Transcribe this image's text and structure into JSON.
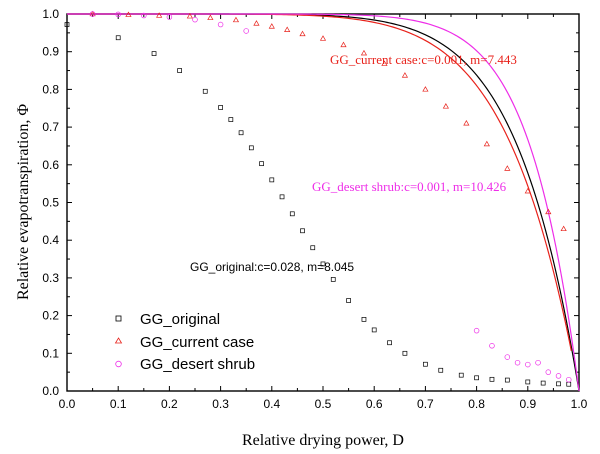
{
  "chart_data": {
    "type": "scatter",
    "xlabel": "Relative drying power, D",
    "ylabel": "Relative evapotranspiration, Φ",
    "xlim": [
      0.0,
      1.0
    ],
    "ylim": [
      0.0,
      1.0
    ],
    "xticks": [
      0.0,
      0.1,
      0.2,
      0.3,
      0.4,
      0.5,
      0.6,
      0.7,
      0.8,
      0.9,
      1.0
    ],
    "yticks": [
      0.0,
      0.1,
      0.2,
      0.3,
      0.4,
      0.5,
      0.6,
      0.7,
      0.8,
      0.9,
      1.0
    ],
    "legend": {
      "position": "bottom-left"
    },
    "series": [
      {
        "name": "GG_original",
        "marker": "square",
        "color": "#000000",
        "fit_label": "GG_original:c=0.028, m=8.045",
        "fit": {
          "c": 0.028,
          "m": 8.045
        },
        "x": [
          0.0,
          0.1,
          0.17,
          0.22,
          0.27,
          0.3,
          0.32,
          0.34,
          0.36,
          0.38,
          0.4,
          0.42,
          0.44,
          0.46,
          0.48,
          0.5,
          0.52,
          0.55,
          0.58,
          0.6,
          0.63,
          0.66,
          0.7,
          0.73,
          0.77,
          0.8,
          0.83,
          0.86,
          0.9,
          0.93,
          0.96,
          0.98
        ],
        "y": [
          0.972,
          0.937,
          0.895,
          0.85,
          0.795,
          0.752,
          0.72,
          0.685,
          0.645,
          0.603,
          0.56,
          0.515,
          0.47,
          0.425,
          0.38,
          0.337,
          0.296,
          0.24,
          0.19,
          0.162,
          0.128,
          0.1,
          0.071,
          0.055,
          0.042,
          0.035,
          0.031,
          0.029,
          0.024,
          0.021,
          0.019,
          0.018
        ]
      },
      {
        "name": "GG_current case",
        "marker": "triangle",
        "color": "#e8221b",
        "fit_label": "GG_current case:c=0.001, m=7.443",
        "fit": {
          "c": 0.001,
          "m": 7.443
        },
        "x": [
          0.05,
          0.12,
          0.18,
          0.24,
          0.28,
          0.33,
          0.37,
          0.4,
          0.43,
          0.46,
          0.5,
          0.54,
          0.58,
          0.62,
          0.66,
          0.7,
          0.74,
          0.78,
          0.82,
          0.86,
          0.9,
          0.94,
          0.97
        ],
        "y": [
          1.0,
          0.998,
          0.996,
          0.994,
          0.99,
          0.984,
          0.975,
          0.967,
          0.958,
          0.947,
          0.935,
          0.918,
          0.896,
          0.868,
          0.837,
          0.8,
          0.755,
          0.71,
          0.655,
          0.59,
          0.53,
          0.475,
          0.43
        ]
      },
      {
        "name": "GG_desert shrub",
        "marker": "circle",
        "color": "#ee2ee8",
        "fit_label": "GG_desert shrub:c=0.001, m=10.426",
        "fit": {
          "c": 0.001,
          "m": 10.426
        },
        "x": [
          0.05,
          0.1,
          0.15,
          0.2,
          0.25,
          0.3,
          0.35,
          0.8,
          0.83,
          0.86,
          0.88,
          0.9,
          0.92,
          0.94,
          0.96,
          0.98
        ],
        "y": [
          1.0,
          0.999,
          0.996,
          0.992,
          0.985,
          0.972,
          0.955,
          0.16,
          0.12,
          0.09,
          0.075,
          0.07,
          0.075,
          0.05,
          0.04,
          0.03
        ]
      }
    ]
  }
}
